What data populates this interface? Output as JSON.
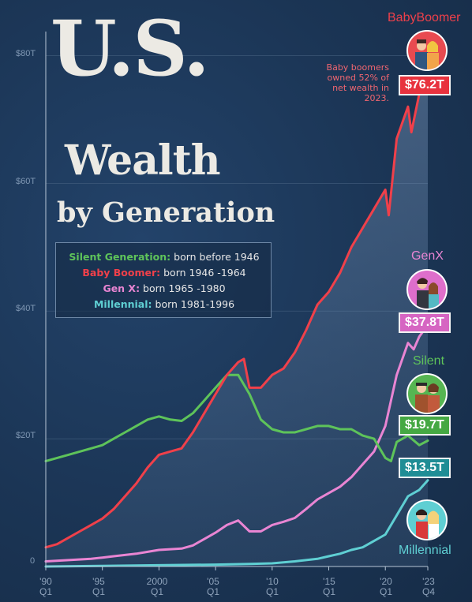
{
  "title": {
    "line1": "U.S.",
    "line2": "Wealth",
    "line3": "by Generation"
  },
  "legend": [
    {
      "name": "Silent Generation:",
      "desc": "born before 1946",
      "color": "#5ec35a"
    },
    {
      "name": "Baby Boomer:",
      "desc": "born 1946 -1964",
      "color": "#f0404a"
    },
    {
      "name": "Gen X:",
      "desc": "born 1965 -1980",
      "color": "#e985d3"
    },
    {
      "name": "Millennial:",
      "desc": "born 1981-1996",
      "color": "#5fcfd3"
    }
  ],
  "annotation": "Baby boomers owned 52% of net wealth in 2023.",
  "generations": {
    "boomer": {
      "label": "BabyBoomer",
      "value": "$76.2T",
      "color": "#f0404a"
    },
    "genx": {
      "label": "GenX",
      "value": "$37.8T",
      "color": "#e985d3"
    },
    "silent": {
      "label": "Silent",
      "value": "$19.7T",
      "color": "#5ec35a"
    },
    "millennial": {
      "label": "Millennial",
      "value": "$13.5T",
      "color": "#5fcfd3"
    }
  },
  "chart_data": {
    "type": "line",
    "ylim": [
      0,
      85
    ],
    "xlim": [
      1990,
      2024.75
    ],
    "yticks": [
      "$80T",
      "$60T",
      "$40T",
      "$20T",
      "0"
    ],
    "ytick_values": [
      80,
      60,
      40,
      20,
      0
    ],
    "xticks": [
      {
        "top": "'90",
        "bottom": "Q1",
        "x": 1990
      },
      {
        "top": "'95",
        "bottom": "Q1",
        "x": 1995
      },
      {
        "top": "2000",
        "bottom": "Q1",
        "x": 2000
      },
      {
        "top": "'05",
        "bottom": "Q1",
        "x": 2005
      },
      {
        "top": "'10",
        "bottom": "Q1",
        "x": 2010
      },
      {
        "top": "'15",
        "bottom": "Q1",
        "x": 2015
      },
      {
        "top": "'20",
        "bottom": "Q1",
        "x": 2020
      },
      {
        "top": "'23",
        "bottom": "Q4",
        "x": 2023.75
      }
    ],
    "series": [
      {
        "name": "Silent Generation",
        "color": "#5ec35a",
        "x": [
          1990,
          1992,
          1994,
          1995,
          1996,
          1997,
          1998,
          1999,
          2000,
          2001,
          2002,
          2003,
          2004,
          2005,
          2006,
          2007,
          2008,
          2009,
          2010,
          2011,
          2012,
          2013,
          2014,
          2015,
          2016,
          2017,
          2018,
          2019,
          2020,
          2020.5,
          2021,
          2022,
          2023,
          2023.75
        ],
        "y": [
          16.5,
          17.5,
          18.5,
          19,
          20,
          21,
          22,
          23,
          23.5,
          23,
          22.8,
          24,
          26,
          28,
          30,
          30,
          27,
          23,
          21.5,
          21,
          21,
          21.5,
          22,
          22,
          21.5,
          21.5,
          20.5,
          20,
          17,
          16.5,
          19.5,
          20.5,
          19,
          19.7
        ]
      },
      {
        "name": "Baby Boomer",
        "color": "#f0404a",
        "x": [
          1990,
          1991,
          1992,
          1993,
          1994,
          1995,
          1996,
          1997,
          1998,
          1999,
          2000,
          2001,
          2002,
          2003,
          2004,
          2005,
          2006,
          2007,
          2007.5,
          2008,
          2009,
          2010,
          2011,
          2012,
          2013,
          2014,
          2015,
          2016,
          2017,
          2018,
          2019,
          2020,
          2020.3,
          2021,
          2022,
          2022.3,
          2023,
          2023.75
        ],
        "y": [
          3,
          3.5,
          4.5,
          5.5,
          6.5,
          7.5,
          9,
          11,
          13,
          15.5,
          17.5,
          18,
          18.5,
          21,
          24,
          27,
          30,
          32,
          32.5,
          28,
          28,
          30,
          31,
          33.5,
          37,
          41,
          43,
          46,
          50,
          53,
          56,
          59,
          55,
          67,
          72,
          68,
          74,
          76.2
        ]
      },
      {
        "name": "Gen X",
        "color": "#e985d3",
        "x": [
          1990,
          1992,
          1994,
          1995,
          1996,
          1997,
          1998,
          1999,
          2000,
          2001,
          2002,
          2003,
          2004,
          2005,
          2006,
          2007,
          2008,
          2009,
          2010,
          2011,
          2012,
          2013,
          2014,
          2015,
          2016,
          2017,
          2018,
          2019,
          2020,
          2021,
          2022,
          2022.5,
          2023,
          2023.75
        ],
        "y": [
          0.8,
          1,
          1.2,
          1.4,
          1.6,
          1.8,
          2,
          2.3,
          2.6,
          2.7,
          2.8,
          3.3,
          4.3,
          5.3,
          6.5,
          7.2,
          5.5,
          5.5,
          6.5,
          7,
          7.6,
          9,
          10.5,
          11.5,
          12.5,
          14,
          16,
          18,
          22,
          30,
          35,
          34,
          36,
          37.8
        ]
      },
      {
        "name": "Millennial",
        "color": "#5fcfd3",
        "x": [
          1990,
          1995,
          2000,
          2005,
          2008,
          2010,
          2012,
          2014,
          2015,
          2016,
          2017,
          2018,
          2019,
          2020,
          2021,
          2022,
          2023,
          2023.75
        ],
        "y": [
          0,
          0.1,
          0.2,
          0.3,
          0.4,
          0.5,
          0.8,
          1.2,
          1.6,
          2,
          2.6,
          3,
          4,
          5,
          8,
          11,
          12,
          13.5
        ]
      }
    ]
  }
}
